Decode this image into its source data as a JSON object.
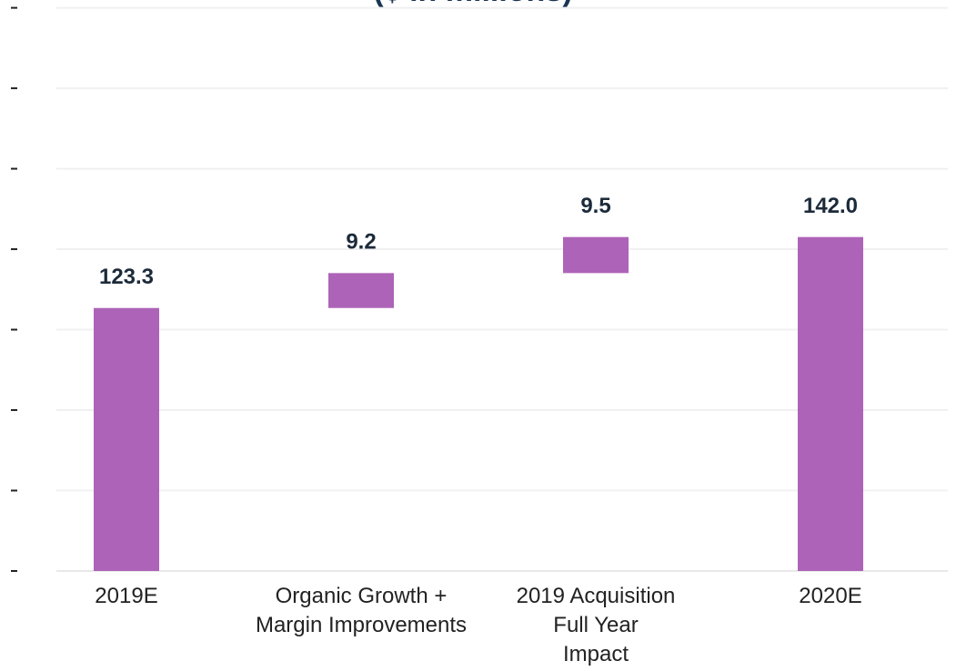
{
  "chart_data": {
    "type": "waterfall",
    "title": "($ in millions)",
    "categories": [
      "2019E",
      "Organic Growth +\nMargin Improvements",
      "2019 Acquisition\nFull Year\nImpact",
      "2020E"
    ],
    "values": [
      123.3,
      9.2,
      9.5,
      142.0
    ],
    "value_labels": [
      "123.3",
      "9.2",
      "9.5",
      "142.0"
    ],
    "measure": [
      "absolute",
      "relative",
      "relative",
      "total"
    ],
    "color": "#ad63b7",
    "ylim": [
      54,
      202.4
    ],
    "yticks": [
      54,
      75.2,
      96.4,
      117.6,
      138.8,
      160,
      181.2,
      202.4
    ],
    "grid": true
  }
}
